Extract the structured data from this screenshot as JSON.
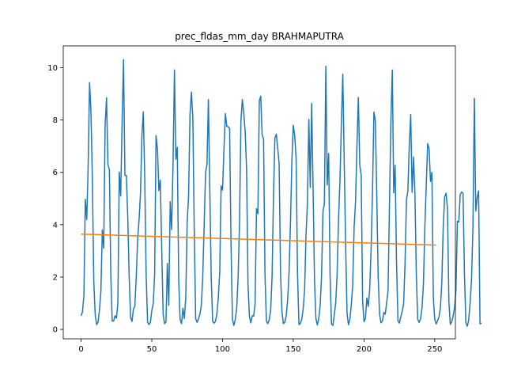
{
  "chart_data": {
    "type": "line",
    "title": "prec_fldas_mm_day BRAHMAPUTRA",
    "xlabel": "",
    "ylabel": "",
    "xlim": [
      -12.6,
      264.6
    ],
    "ylim": [
      -0.36,
      10.83
    ],
    "xticks": [
      0,
      50,
      100,
      150,
      200,
      250
    ],
    "yticks": [
      0,
      2,
      4,
      6,
      8,
      10
    ],
    "grid": false,
    "colors": {
      "series": "#1f77b4",
      "trend": "#ff7f0e"
    },
    "series": [
      {
        "values": [
          0.52,
          0.67,
          1.3,
          4.97,
          4.2,
          6.2,
          9.43,
          8.3,
          5.7,
          1.8,
          0.55,
          0.18,
          0.28,
          0.75,
          1.45,
          3.8,
          3.1,
          7.8,
          8.85,
          6.3,
          6.1,
          2.1,
          0.32,
          0.32,
          0.52,
          0.43,
          1.0,
          6.01,
          5.1,
          7.9,
          10.3,
          5.88,
          5.88,
          4.3,
          2.01,
          0.45,
          0.3,
          0.78,
          0.88,
          2.01,
          3.45,
          4.2,
          5.2,
          7.4,
          8.31,
          5.8,
          2.08,
          0.28,
          0.18,
          0.27,
          0.72,
          0.98,
          2.1,
          7.4,
          6.89,
          5.3,
          5.7,
          3.1,
          0.58,
          0.22,
          0.28,
          2.52,
          0.92,
          4.88,
          3.81,
          6.3,
          9.91,
          6.5,
          6.96,
          1.9,
          0.38,
          0.22,
          0.81,
          0.42,
          1.2,
          4.1,
          5.1,
          8.2,
          9.07,
          8.1,
          3.8,
          0.41,
          0.27,
          0.4,
          0.58,
          0.91,
          2.01,
          3.98,
          5.99,
          6.31,
          8.78,
          5.33,
          1.98,
          0.31,
          0.24,
          0.31,
          0.59,
          1.22,
          2.18,
          5.48,
          5.32,
          6.88,
          8.24,
          7.76,
          7.74,
          7.68,
          3.24,
          0.38,
          0.15,
          0.38,
          0.8,
          1.98,
          4.05,
          7.98,
          8.78,
          8.25,
          7.55,
          6.1,
          1.7,
          0.5,
          0.25,
          0.52,
          0.51,
          0.98,
          4.61,
          4.42,
          8.73,
          8.91,
          7.43,
          7.28,
          2.1,
          0.32,
          0.22,
          0.37,
          0.72,
          1.98,
          5.03,
          7.31,
          7.46,
          6.93,
          6.32,
          2.11,
          0.68,
          0.22,
          0.27,
          0.52,
          1.12,
          2.15,
          4.05,
          6.42,
          7.8,
          7.42,
          6.54,
          2.12,
          0.18,
          0.23,
          0.39,
          0.78,
          1.5,
          3.61,
          4.85,
          8.02,
          5.42,
          8.63,
          5.41,
          1.89,
          0.42,
          0.17,
          0.41,
          0.92,
          2.06,
          4.51,
          4.81,
          10.05,
          5.52,
          6.72,
          2.08,
          0.22,
          0.15,
          0.55,
          1.03,
          2.12,
          4.21,
          5.68,
          7.82,
          9.75,
          6.4,
          3.25,
          0.62,
          0.18,
          0.38,
          0.92,
          1.68,
          3.89,
          4.87,
          6.98,
          8.86,
          6.28,
          5.9,
          1.12,
          0.29,
          0.42,
          1.2,
          0.88,
          1.52,
          3.03,
          5.25,
          8.3,
          7.97,
          5.19,
          2.04,
          0.58,
          0.25,
          0.32,
          0.65,
          0.58,
          1.02,
          1.48,
          4.81,
          7.95,
          9.91,
          5.22,
          6.27,
          2.51,
          0.33,
          0.24,
          0.48,
          0.68,
          0.98,
          2.5,
          4.95,
          5.29,
          7.02,
          8.21,
          5.24,
          6.59,
          5.18,
          2.01,
          0.38,
          0.27,
          0.41,
          0.82,
          1.72,
          3.91,
          5.51,
          7.1,
          6.9,
          5.65,
          6.0,
          1.21,
          0.39,
          0.21,
          0.33,
          0.48,
          0.82,
          1.8,
          3.92,
          5.06,
          5.2,
          4.61,
          1.05,
          0.19,
          0.29,
          0.52,
          0.81,
          1.51,
          4.13,
          4.1,
          5.15,
          5.25,
          5.2,
          2.11,
          0.25,
          0.12,
          0.36,
          1.02,
          1.92,
          3.9,
          8.83,
          4.52,
          5.05,
          5.29,
          0.21,
          0.24
        ]
      },
      {
        "x": [
          0,
          251
        ],
        "values": [
          3.64,
          3.22
        ]
      }
    ]
  }
}
